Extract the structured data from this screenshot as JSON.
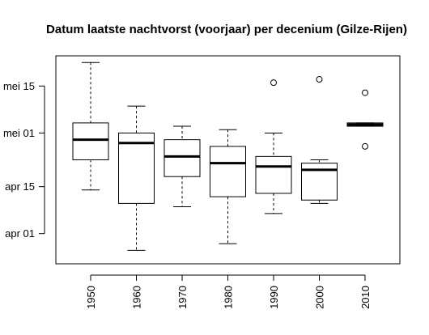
{
  "chart_data": {
    "type": "boxplot",
    "title": "Datum laatste nachtvorst (voorjaar) per decenium (Gilze-Rijen)",
    "xlabel": "",
    "ylabel": "",
    "categories": [
      "1950",
      "1960",
      "1970",
      "1980",
      "1990",
      "2000",
      "2010"
    ],
    "y_tick_values": [
      91,
      105,
      121,
      135
    ],
    "y_tick_labels": [
      "apr 01",
      "apr 15",
      "mei 01",
      "mei 15"
    ],
    "ylim": [
      82,
      144
    ],
    "units": "day of year",
    "boxes": [
      {
        "category": "1950",
        "whisker_low": 104,
        "q1": 113,
        "median": 119,
        "q3": 124,
        "whisker_high": 142,
        "outliers": []
      },
      {
        "category": "1960",
        "whisker_low": 86,
        "q1": 100,
        "median": 118,
        "q3": 121,
        "whisker_high": 129,
        "outliers": []
      },
      {
        "category": "1970",
        "whisker_low": 99,
        "q1": 108,
        "median": 114,
        "q3": 119,
        "whisker_high": 123,
        "outliers": []
      },
      {
        "category": "1980",
        "whisker_low": 88,
        "q1": 102,
        "median": 112,
        "q3": 117,
        "whisker_high": 122,
        "outliers": []
      },
      {
        "category": "1990",
        "whisker_low": 97,
        "q1": 103,
        "median": 111,
        "q3": 114,
        "whisker_high": 121,
        "outliers": [
          136
        ]
      },
      {
        "category": "2000",
        "whisker_low": 100,
        "q1": 101,
        "median": 110,
        "q3": 112,
        "whisker_high": 113,
        "outliers": [
          137
        ]
      },
      {
        "category": "2010",
        "whisker_low": 123,
        "q1": 123,
        "median": 123.5,
        "q3": 124,
        "whisker_high": 124,
        "outliers": [
          133,
          117
        ]
      }
    ],
    "grid": false,
    "legend": "none"
  }
}
